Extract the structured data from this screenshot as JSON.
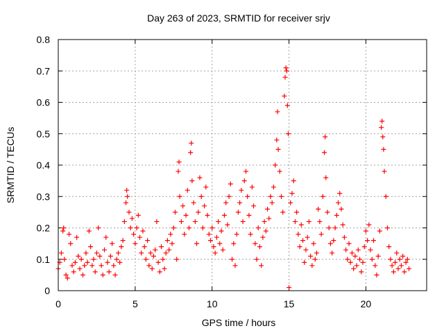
{
  "chart_data": {
    "type": "scatter",
    "title": "Day 263 of 2023, SRMTID for receiver srjv",
    "xlabel": "GPS time / hours",
    "ylabel": "SRMTID / TECUs",
    "xlim": [
      0,
      23.95
    ],
    "ylim": [
      0,
      0.8
    ],
    "x_ticks": [
      0,
      5,
      10,
      15,
      20
    ],
    "x_tick_labels": [
      "0",
      "5",
      "10",
      "15",
      "20"
    ],
    "y_ticks": [
      0,
      0.1,
      0.2,
      0.3,
      0.4,
      0.5,
      0.6,
      0.7,
      0.8
    ],
    "y_tick_labels": [
      "0",
      "0.1",
      "0.2",
      "0.3",
      "0.4",
      "0.5",
      "0.6",
      "0.7",
      "0.8"
    ],
    "grid": true,
    "marker": "+",
    "marker_color": "#ff0000",
    "series": [
      {
        "name": "SRMTID",
        "points": [
          [
            0.0,
            0.07
          ],
          [
            0.1,
            0.09
          ],
          [
            0.2,
            0.12
          ],
          [
            0.3,
            0.19
          ],
          [
            0.35,
            0.2
          ],
          [
            0.4,
            0.1
          ],
          [
            0.5,
            0.05
          ],
          [
            0.6,
            0.04
          ],
          [
            0.7,
            0.18
          ],
          [
            0.8,
            0.15
          ],
          [
            0.9,
            0.08
          ],
          [
            1.0,
            0.06
          ],
          [
            1.1,
            0.09
          ],
          [
            1.2,
            0.17
          ],
          [
            1.3,
            0.11
          ],
          [
            1.4,
            0.07
          ],
          [
            1.5,
            0.1
          ],
          [
            1.6,
            0.05
          ],
          [
            1.7,
            0.08
          ],
          [
            1.8,
            0.12
          ],
          [
            1.9,
            0.09
          ],
          [
            2.0,
            0.19
          ],
          [
            2.1,
            0.14
          ],
          [
            2.2,
            0.08
          ],
          [
            2.3,
            0.1
          ],
          [
            2.4,
            0.06
          ],
          [
            2.5,
            0.12
          ],
          [
            2.6,
            0.2
          ],
          [
            2.7,
            0.11
          ],
          [
            2.8,
            0.08
          ],
          [
            2.9,
            0.05
          ],
          [
            3.0,
            0.13
          ],
          [
            3.1,
            0.17
          ],
          [
            3.2,
            0.09
          ],
          [
            3.3,
            0.06
          ],
          [
            3.4,
            0.11
          ],
          [
            3.5,
            0.15
          ],
          [
            3.6,
            0.08
          ],
          [
            3.7,
            0.05
          ],
          [
            3.8,
            0.1
          ],
          [
            3.9,
            0.12
          ],
          [
            4.0,
            0.09
          ],
          [
            4.1,
            0.14
          ],
          [
            4.2,
            0.16
          ],
          [
            4.3,
            0.22
          ],
          [
            4.4,
            0.28
          ],
          [
            4.45,
            0.32
          ],
          [
            4.5,
            0.3
          ],
          [
            4.6,
            0.25
          ],
          [
            4.7,
            0.2
          ],
          [
            4.8,
            0.23
          ],
          [
            4.9,
            0.18
          ],
          [
            5.0,
            0.15
          ],
          [
            5.1,
            0.2
          ],
          [
            5.2,
            0.24
          ],
          [
            5.3,
            0.17
          ],
          [
            5.4,
            0.12
          ],
          [
            5.5,
            0.19
          ],
          [
            5.6,
            0.14
          ],
          [
            5.7,
            0.1
          ],
          [
            5.8,
            0.16
          ],
          [
            5.9,
            0.08
          ],
          [
            6.0,
            0.12
          ],
          [
            6.1,
            0.07
          ],
          [
            6.2,
            0.11
          ],
          [
            6.3,
            0.13
          ],
          [
            6.4,
            0.22
          ],
          [
            6.5,
            0.09
          ],
          [
            6.6,
            0.06
          ],
          [
            6.7,
            0.14
          ],
          [
            6.8,
            0.1
          ],
          [
            6.9,
            0.07
          ],
          [
            7.0,
            0.12
          ],
          [
            7.1,
            0.16
          ],
          [
            7.2,
            0.13
          ],
          [
            7.3,
            0.18
          ],
          [
            7.4,
            0.15
          ],
          [
            7.5,
            0.2
          ],
          [
            7.6,
            0.25
          ],
          [
            7.7,
            0.1
          ],
          [
            7.8,
            0.38
          ],
          [
            7.85,
            0.41
          ],
          [
            7.9,
            0.3
          ],
          [
            8.0,
            0.22
          ],
          [
            8.1,
            0.27
          ],
          [
            8.2,
            0.18
          ],
          [
            8.3,
            0.24
          ],
          [
            8.4,
            0.32
          ],
          [
            8.5,
            0.2
          ],
          [
            8.6,
            0.44
          ],
          [
            8.65,
            0.47
          ],
          [
            8.7,
            0.35
          ],
          [
            8.8,
            0.28
          ],
          [
            8.9,
            0.22
          ],
          [
            9.0,
            0.15
          ],
          [
            9.1,
            0.25
          ],
          [
            9.2,
            0.36
          ],
          [
            9.3,
            0.3
          ],
          [
            9.4,
            0.2
          ],
          [
            9.5,
            0.27
          ],
          [
            9.6,
            0.33
          ],
          [
            9.7,
            0.24
          ],
          [
            9.8,
            0.18
          ],
          [
            9.9,
            0.16
          ],
          [
            10.0,
            0.2
          ],
          [
            10.1,
            0.14
          ],
          [
            10.2,
            0.12
          ],
          [
            10.3,
            0.17
          ],
          [
            10.4,
            0.22
          ],
          [
            10.5,
            0.15
          ],
          [
            10.6,
            0.19
          ],
          [
            10.7,
            0.13
          ],
          [
            10.8,
            0.24
          ],
          [
            10.9,
            0.28
          ],
          [
            11.0,
            0.21
          ],
          [
            11.1,
            0.3
          ],
          [
            11.2,
            0.34
          ],
          [
            11.3,
            0.1
          ],
          [
            11.4,
            0.15
          ],
          [
            11.5,
            0.08
          ],
          [
            11.6,
            0.18
          ],
          [
            11.7,
            0.25
          ],
          [
            11.8,
            0.28
          ],
          [
            11.9,
            0.32
          ],
          [
            12.0,
            0.22
          ],
          [
            12.1,
            0.35
          ],
          [
            12.2,
            0.38
          ],
          [
            12.3,
            0.3
          ],
          [
            12.4,
            0.24
          ],
          [
            12.5,
            0.18
          ],
          [
            12.6,
            0.33
          ],
          [
            12.7,
            0.27
          ],
          [
            12.8,
            0.15
          ],
          [
            12.9,
            0.1
          ],
          [
            13.0,
            0.2
          ],
          [
            13.1,
            0.14
          ],
          [
            13.2,
            0.08
          ],
          [
            13.3,
            0.17
          ],
          [
            13.4,
            0.22
          ],
          [
            13.5,
            0.19
          ],
          [
            13.6,
            0.26
          ],
          [
            13.7,
            0.23
          ],
          [
            13.8,
            0.3
          ],
          [
            13.9,
            0.28
          ],
          [
            14.0,
            0.33
          ],
          [
            14.1,
            0.4
          ],
          [
            14.2,
            0.48
          ],
          [
            14.25,
            0.57
          ],
          [
            14.3,
            0.45
          ],
          [
            14.4,
            0.38
          ],
          [
            14.5,
            0.3
          ],
          [
            14.6,
            0.25
          ],
          [
            14.7,
            0.62
          ],
          [
            14.75,
            0.68
          ],
          [
            14.8,
            0.71
          ],
          [
            14.85,
            0.7
          ],
          [
            14.9,
            0.59
          ],
          [
            14.95,
            0.5
          ],
          [
            15.0,
            0.01
          ],
          [
            15.1,
            0.28
          ],
          [
            15.2,
            0.31
          ],
          [
            15.3,
            0.35
          ],
          [
            15.4,
            0.22
          ],
          [
            15.5,
            0.25
          ],
          [
            15.6,
            0.18
          ],
          [
            15.7,
            0.14
          ],
          [
            15.8,
            0.21
          ],
          [
            15.9,
            0.16
          ],
          [
            16.0,
            0.09
          ],
          [
            16.1,
            0.13
          ],
          [
            16.2,
            0.17
          ],
          [
            16.3,
            0.22
          ],
          [
            16.4,
            0.11
          ],
          [
            16.5,
            0.08
          ],
          [
            16.6,
            0.15
          ],
          [
            16.7,
            0.1
          ],
          [
            16.8,
            0.12
          ],
          [
            16.9,
            0.26
          ],
          [
            17.0,
            0.22
          ],
          [
            17.1,
            0.18
          ],
          [
            17.2,
            0.3
          ],
          [
            17.3,
            0.44
          ],
          [
            17.35,
            0.49
          ],
          [
            17.4,
            0.36
          ],
          [
            17.5,
            0.25
          ],
          [
            17.6,
            0.2
          ],
          [
            17.7,
            0.15
          ],
          [
            17.8,
            0.12
          ],
          [
            17.9,
            0.16
          ],
          [
            18.0,
            0.2
          ],
          [
            18.1,
            0.24
          ],
          [
            18.2,
            0.28
          ],
          [
            18.3,
            0.31
          ],
          [
            18.4,
            0.26
          ],
          [
            18.5,
            0.21
          ],
          [
            18.6,
            0.17
          ],
          [
            18.7,
            0.13
          ],
          [
            18.8,
            0.1
          ],
          [
            18.9,
            0.15
          ],
          [
            19.0,
            0.09
          ],
          [
            19.1,
            0.12
          ],
          [
            19.2,
            0.07
          ],
          [
            19.3,
            0.11
          ],
          [
            19.4,
            0.08
          ],
          [
            19.5,
            0.13
          ],
          [
            19.6,
            0.1
          ],
          [
            19.7,
            0.06
          ],
          [
            19.8,
            0.09
          ],
          [
            19.9,
            0.14
          ],
          [
            20.0,
            0.19
          ],
          [
            20.1,
            0.16
          ],
          [
            20.2,
            0.21
          ],
          [
            20.3,
            0.13
          ],
          [
            20.4,
            0.1
          ],
          [
            20.5,
            0.16
          ],
          [
            20.6,
            0.08
          ],
          [
            20.7,
            0.05
          ],
          [
            20.8,
            0.11
          ],
          [
            20.9,
            0.19
          ],
          [
            21.0,
            0.52
          ],
          [
            21.05,
            0.54
          ],
          [
            21.1,
            0.49
          ],
          [
            21.15,
            0.45
          ],
          [
            21.2,
            0.38
          ],
          [
            21.3,
            0.3
          ],
          [
            21.4,
            0.2
          ],
          [
            21.5,
            0.14
          ],
          [
            21.6,
            0.1
          ],
          [
            21.7,
            0.08
          ],
          [
            21.8,
            0.06
          ],
          [
            21.9,
            0.09
          ],
          [
            22.0,
            0.12
          ],
          [
            22.1,
            0.07
          ],
          [
            22.2,
            0.1
          ],
          [
            22.3,
            0.08
          ],
          [
            22.4,
            0.11
          ],
          [
            22.5,
            0.06
          ],
          [
            22.6,
            0.09
          ],
          [
            22.7,
            0.1
          ],
          [
            22.8,
            0.07
          ]
        ]
      }
    ]
  }
}
